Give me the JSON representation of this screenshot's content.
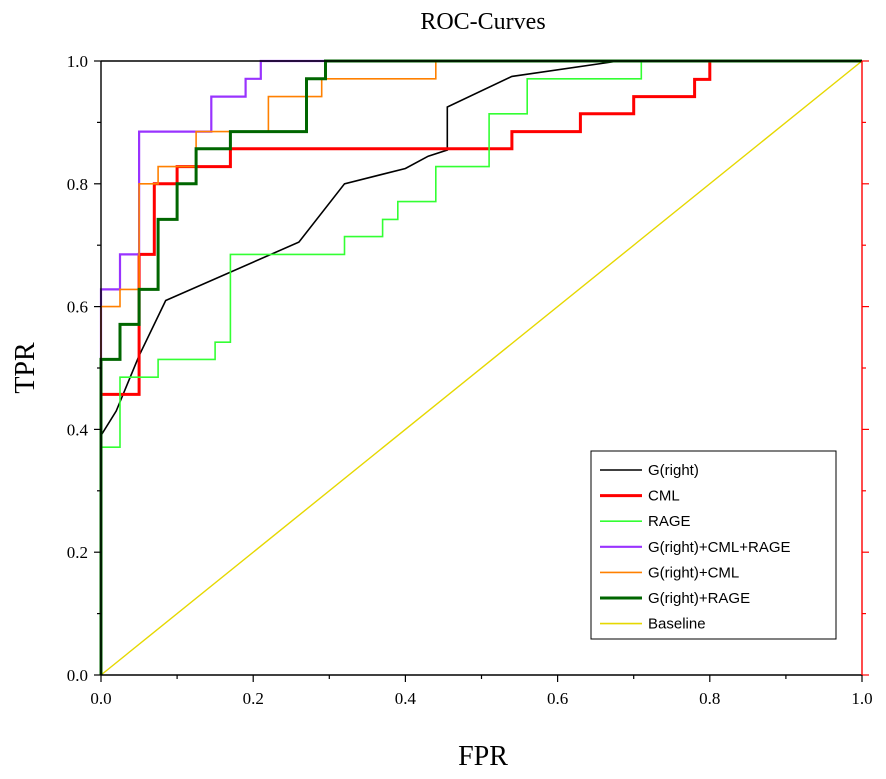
{
  "chart_data": {
    "type": "line",
    "title": "ROC-Curves",
    "xlabel": "FPR",
    "ylabel": "TPR",
    "xlim": [
      0,
      1
    ],
    "ylim": [
      0,
      1
    ],
    "xticks": [
      "0.0",
      "0.2",
      "0.4",
      "0.6",
      "0.8",
      "1.0"
    ],
    "yticks": [
      "0.0",
      "0.2",
      "0.4",
      "0.6",
      "0.8",
      "1.0"
    ],
    "grid": false,
    "legend_position": "bottom-right",
    "colors": {
      "left_axis": "#000000",
      "right_axis": "#ff0000"
    },
    "series": [
      {
        "name": "G(right)",
        "color": "#000000",
        "width": 1.6,
        "x": [
          0,
          0,
          0.02,
          0.05,
          0.085,
          0.26,
          0.32,
          0.4,
          0.43,
          0.455,
          0.455,
          0.54,
          0.68,
          0.7,
          1.0
        ],
        "y": [
          0,
          0.39,
          0.43,
          0.52,
          0.61,
          0.705,
          0.8,
          0.825,
          0.845,
          0.855,
          0.925,
          0.975,
          1.0,
          1.0,
          1.0
        ]
      },
      {
        "name": "CML",
        "color": "#ff0000",
        "width": 3,
        "x": [
          0,
          0,
          0.05,
          0.05,
          0.05,
          0.07,
          0.07,
          0.1,
          0.1,
          0.17,
          0.17,
          0.54,
          0.54,
          0.63,
          0.63,
          0.7,
          0.7,
          0.78,
          0.78,
          0.8,
          0.8,
          1.0
        ],
        "y": [
          0,
          0.457,
          0.457,
          0.6,
          0.685,
          0.685,
          0.8,
          0.8,
          0.828,
          0.828,
          0.857,
          0.857,
          0.885,
          0.885,
          0.914,
          0.914,
          0.942,
          0.942,
          0.97,
          0.97,
          1.0,
          1.0
        ]
      },
      {
        "name": "RAGE",
        "color": "#33ff33",
        "width": 1.6,
        "x": [
          0,
          0,
          0.025,
          0.025,
          0.075,
          0.075,
          0.15,
          0.15,
          0.17,
          0.17,
          0.32,
          0.32,
          0.37,
          0.37,
          0.39,
          0.39,
          0.44,
          0.44,
          0.51,
          0.51,
          0.56,
          0.56,
          0.71,
          0.71,
          1.0
        ],
        "y": [
          0,
          0.371,
          0.371,
          0.485,
          0.485,
          0.514,
          0.514,
          0.542,
          0.542,
          0.685,
          0.685,
          0.714,
          0.714,
          0.742,
          0.742,
          0.771,
          0.771,
          0.828,
          0.828,
          0.914,
          0.914,
          0.971,
          0.971,
          1.0,
          1.0
        ]
      },
      {
        "name": "G(right)+CML+RAGE",
        "color": "#9933ff",
        "width": 2.2,
        "x": [
          0,
          0,
          0.025,
          0.025,
          0.05,
          0.05,
          0.145,
          0.145,
          0.19,
          0.19,
          0.21,
          0.21,
          0.23,
          0.23,
          1.0
        ],
        "y": [
          0,
          0.628,
          0.628,
          0.685,
          0.685,
          0.885,
          0.885,
          0.942,
          0.942,
          0.971,
          0.971,
          1.0,
          1.0,
          1.0,
          1.0
        ]
      },
      {
        "name": "G(right)+CML",
        "color": "#ff8000",
        "width": 1.6,
        "x": [
          0,
          0,
          0.025,
          0.025,
          0.05,
          0.05,
          0.075,
          0.075,
          0.125,
          0.125,
          0.22,
          0.22,
          0.29,
          0.29,
          0.44,
          0.44,
          1.0
        ],
        "y": [
          0,
          0.6,
          0.6,
          0.628,
          0.628,
          0.8,
          0.8,
          0.828,
          0.828,
          0.885,
          0.885,
          0.942,
          0.942,
          0.971,
          0.971,
          1.0,
          1.0
        ]
      },
      {
        "name": "G(right)+RAGE",
        "color": "#006600",
        "width": 3,
        "x": [
          0,
          0,
          0.025,
          0.025,
          0.05,
          0.05,
          0.075,
          0.075,
          0.1,
          0.1,
          0.125,
          0.125,
          0.17,
          0.17,
          0.27,
          0.27,
          0.295,
          0.295,
          1.0
        ],
        "y": [
          0,
          0.514,
          0.514,
          0.571,
          0.571,
          0.628,
          0.628,
          0.742,
          0.742,
          0.8,
          0.8,
          0.857,
          0.857,
          0.885,
          0.885,
          0.971,
          0.971,
          1.0,
          1.0
        ]
      },
      {
        "name": "Baseline",
        "color": "#e6d800",
        "width": 1.4,
        "x": [
          0,
          1
        ],
        "y": [
          0,
          1
        ]
      }
    ]
  }
}
